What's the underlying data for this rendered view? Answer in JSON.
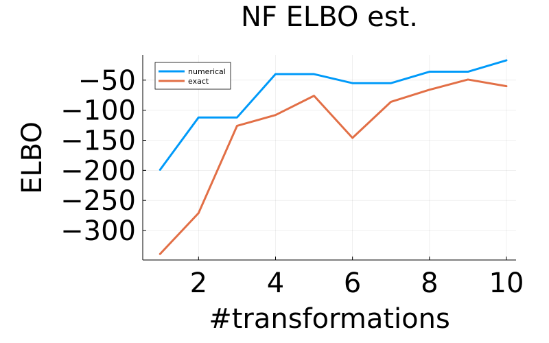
{
  "chart_data": {
    "type": "line",
    "title": "NF ELBO est.",
    "xlabel": "#transformations",
    "ylabel": "ELBO",
    "x": [
      1,
      2,
      3,
      4,
      5,
      6,
      7,
      8,
      9,
      10
    ],
    "xlim": [
      0.55,
      10.25
    ],
    "ylim": [
      -349,
      -8
    ],
    "xticks": [
      2,
      4,
      6,
      8,
      10
    ],
    "yticks": [
      -50,
      -100,
      -150,
      -200,
      -250,
      -300
    ],
    "grid": true,
    "legend_position": "top-left",
    "series": [
      {
        "name": "numerical",
        "color": "#009af9",
        "values": [
          -199,
          -112,
          -112,
          -40,
          -40,
          -55,
          -55,
          -36,
          -36,
          -17
        ]
      },
      {
        "name": "exact",
        "color": "#e26f46",
        "values": [
          -339,
          -271,
          -126,
          -108,
          -76,
          -146,
          -86,
          -66,
          -49,
          -60
        ]
      }
    ]
  }
}
